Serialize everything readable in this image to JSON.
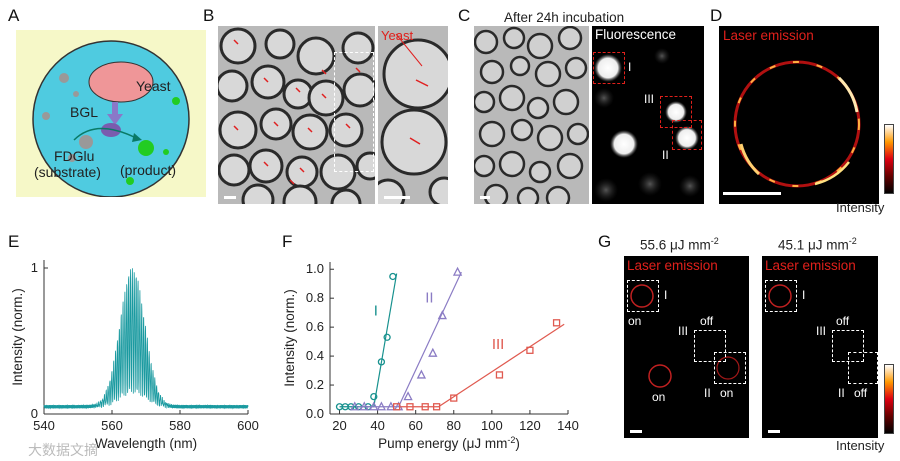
{
  "panels": {
    "A": {
      "letter": "A",
      "yeast": "Yeast",
      "bgl": "BGL",
      "fdglu": "FDGlu",
      "substrate": "(substrate)",
      "product": "(product)"
    },
    "B": {
      "letter": "B",
      "yeast": "Yeast"
    },
    "C": {
      "letter": "C",
      "title": "After 24h incubation",
      "fluorescence": "Fluorescence",
      "markers": [
        "I",
        "II",
        "III"
      ]
    },
    "D": {
      "letter": "D",
      "title": "Laser emission",
      "intensity": "Intensity"
    },
    "E": {
      "letter": "E"
    },
    "F": {
      "letter": "F"
    },
    "G": {
      "letter": "G",
      "left_title": "55.6 μJ mm",
      "right_title": "45.1 μJ mm",
      "exp": "-2",
      "laser": "Laser emission",
      "intensity": "Intensity",
      "left_labels": {
        "I": "I",
        "on1": "on",
        "III": "III",
        "off": "off",
        "on2": "on",
        "II": "II",
        "on3": "on"
      },
      "right_labels": {
        "I": "I",
        "III": "III",
        "off1": "off",
        "II": "II",
        "off2": "off"
      }
    }
  },
  "watermark": "大数据文摘",
  "chart_data": [
    {
      "id": "E",
      "type": "line",
      "xlabel": "Wavelength (nm)",
      "ylabel": "Intensity (norm.)",
      "xlim": [
        540,
        600
      ],
      "ylim": [
        0,
        1
      ],
      "xticks": [
        "540",
        "560",
        "580",
        "600"
      ],
      "yticks": [
        "0",
        "1"
      ],
      "series": [
        {
          "name": "spectrum",
          "color": "#1a9aa0",
          "peak_nm": 566,
          "width_nm": 5.2,
          "baseline": 0.05,
          "mode_spacing_nm": 0.55
        }
      ]
    },
    {
      "id": "F",
      "type": "scatter",
      "xlabel": "Pump energy (μJ mm",
      "xlabel_exp": "-2",
      "xlabel_end": ")",
      "ylabel": "Intensity (norm.)",
      "xlim": [
        15,
        140
      ],
      "ylim": [
        0,
        1.05
      ],
      "xticks": [
        20,
        40,
        60,
        80,
        100,
        120,
        140
      ],
      "yticks": [
        "0.0",
        "0.2",
        "0.4",
        "0.6",
        "0.8",
        "1.0"
      ],
      "series": [
        {
          "name": "I",
          "color": "#17918e",
          "marker": "circle",
          "x": [
            20,
            23,
            26,
            30,
            35,
            38,
            42,
            45,
            48
          ],
          "y": [
            0.05,
            0.05,
            0.05,
            0.05,
            0.05,
            0.12,
            0.36,
            0.53,
            0.95
          ],
          "fit": [
            [
              20,
              0.05
            ],
            [
              38,
              0.05
            ],
            [
              50,
              0.97
            ]
          ]
        },
        {
          "name": "II",
          "color": "#8b7cc4",
          "marker": "triangle",
          "x": [
            28,
            33,
            38,
            42,
            47,
            51,
            56,
            63,
            69,
            74,
            82
          ],
          "y": [
            0.05,
            0.05,
            0.05,
            0.05,
            0.05,
            0.05,
            0.12,
            0.27,
            0.42,
            0.68,
            0.98
          ],
          "fit": [
            [
              30,
              0.05
            ],
            [
              51,
              0.05
            ],
            [
              84,
              0.98
            ]
          ]
        },
        {
          "name": "III",
          "color": "#e05a50",
          "marker": "square",
          "x": [
            50,
            57,
            65,
            71,
            80,
            104,
            120,
            134
          ],
          "y": [
            0.05,
            0.05,
            0.05,
            0.05,
            0.11,
            0.27,
            0.44,
            0.63
          ],
          "fit": [
            [
              52,
              0.05
            ],
            [
              72,
              0.05
            ],
            [
              138,
              0.62
            ]
          ]
        }
      ]
    }
  ]
}
